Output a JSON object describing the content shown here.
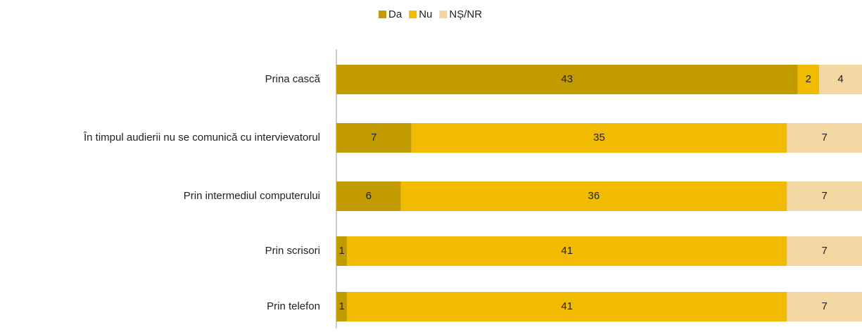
{
  "chart_data": {
    "type": "stacked-bar-horizontal",
    "categories": [
      "Prina cască",
      "În timpul audierii nu se comunică cu intervievatorul",
      "Prin intermediul computerului",
      "Prin scrisori",
      "Prin telefon"
    ],
    "series": [
      {
        "name": "Da",
        "color": "#c19b00",
        "values": [
          43,
          7,
          6,
          1,
          1
        ]
      },
      {
        "name": "Nu",
        "color": "#f0bb00",
        "values": [
          2,
          35,
          36,
          41,
          41
        ]
      },
      {
        "name": "NȘ/NR",
        "color": "#f3d7a3",
        "values": [
          4,
          7,
          7,
          7,
          7
        ]
      }
    ],
    "xlim": [
      0,
      49
    ],
    "legend": "top"
  }
}
